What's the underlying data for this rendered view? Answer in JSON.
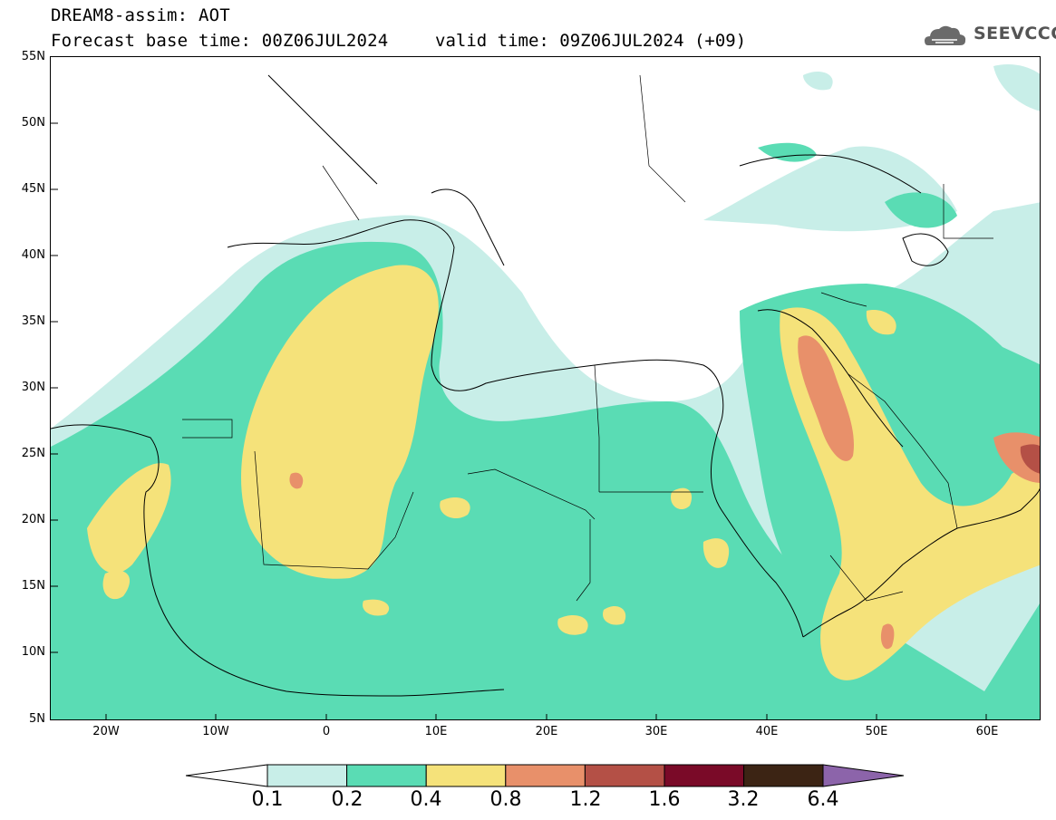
{
  "header": {
    "title": "DREAM8-assim: AOT",
    "base_time": "Forecast base time: 00Z06JUL2024",
    "valid_time": "valid time: 09Z06JUL2024 (+09)",
    "logo_text": "SEEVCCC"
  },
  "map": {
    "lat_labels": [
      "55N",
      "50N",
      "45N",
      "40N",
      "35N",
      "30N",
      "25N",
      "20N",
      "15N",
      "10N",
      "5N"
    ],
    "lon_labels": [
      "20W",
      "10W",
      "0",
      "10E",
      "20E",
      "30E",
      "40E",
      "50E",
      "60E"
    ],
    "extent": {
      "lon_min": -25,
      "lon_max": 65,
      "lat_min": 5,
      "lat_max": 55
    }
  },
  "legend": {
    "variable": "AOT",
    "levels": [
      "0.1",
      "0.2",
      "0.4",
      "0.8",
      "1.2",
      "1.6",
      "3.2",
      "6.4"
    ],
    "colors": [
      "#c8eee8",
      "#5adcb4",
      "#f5e27a",
      "#e8906a",
      "#b45046",
      "#7a0a28",
      "#3c2414",
      "#8c64aa"
    ]
  }
}
